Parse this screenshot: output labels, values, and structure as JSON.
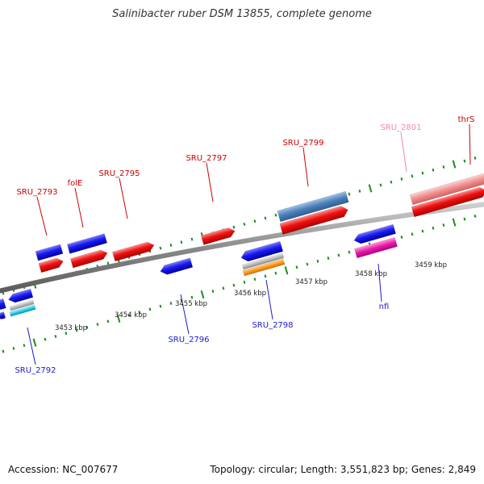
{
  "title": "Salinibacter ruber DSM 13855, complete genome",
  "footer": {
    "accession": "Accession: NC_007677",
    "summary": "Topology: circular; Length: 3,551,823 bp; Genes: 2,849"
  },
  "colors": {
    "backbone": "#8a8a8a",
    "forward_label": "#cc0000",
    "reverse_label": "#1a1acc",
    "forward_gene": "#ee1111",
    "reverse_gene": "#1a1aee",
    "tick": "#1a8c1a",
    "pseudo_label": "#f08aa8"
  },
  "kbp_labels": [
    "3453 kbp",
    "3454 kbp",
    "3455 kbp",
    "3456 kbp",
    "3457 kbp",
    "3458 kbp",
    "3459 kbp"
  ],
  "gene_labels": [
    {
      "id": "SRU_2793",
      "strand": "forward"
    },
    {
      "id": "folE",
      "strand": "forward"
    },
    {
      "id": "SRU_2795",
      "strand": "forward"
    },
    {
      "id": "SRU_2797",
      "strand": "forward"
    },
    {
      "id": "SRU_2799",
      "strand": "forward"
    },
    {
      "id": "SRU_2801",
      "strand": "pseudo"
    },
    {
      "id": "thrS",
      "strand": "forward"
    },
    {
      "id": "SRU_2792",
      "strand": "reverse"
    },
    {
      "id": "SRU_2796",
      "strand": "reverse"
    },
    {
      "id": "SRU_2798",
      "strand": "reverse"
    },
    {
      "id": "nfi",
      "strand": "reverse"
    }
  ]
}
